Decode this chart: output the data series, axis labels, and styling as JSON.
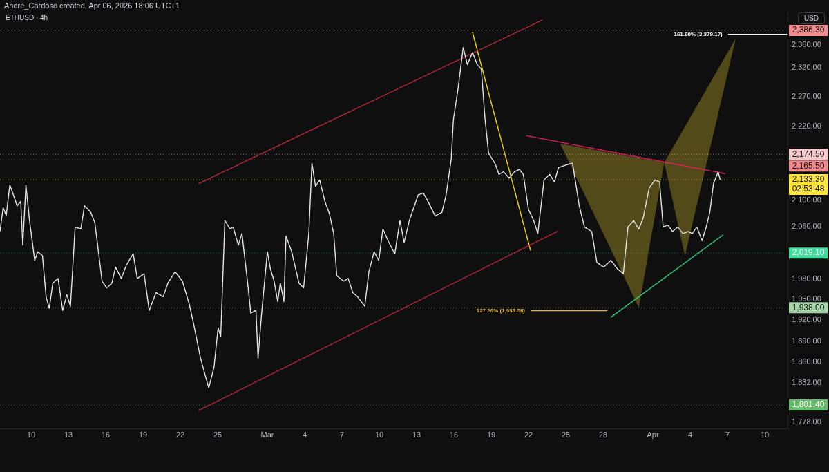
{
  "chart_data": {
    "type": "line",
    "title": "ETHUSD · 4h",
    "subtitle": "Andre_Cardoso created, Apr 06, 2026 18:06 UTC+1",
    "ylabel": "USD",
    "log": true,
    "grid": false,
    "legend": false,
    "marker": "none",
    "xlim": [
      "2026-02-07T12:00",
      "2026-04-11T20:00"
    ],
    "xticks": [
      {
        "value": "2026-02-10",
        "label": "10"
      },
      {
        "value": "2026-02-13",
        "label": "13"
      },
      {
        "value": "2026-02-16",
        "label": "16"
      },
      {
        "value": "2026-02-19",
        "label": "19"
      },
      {
        "value": "2026-02-22",
        "label": "22"
      },
      {
        "value": "2026-02-25",
        "label": "25"
      },
      {
        "value": "2026-03-01",
        "label": "Mar"
      },
      {
        "value": "2026-03-04",
        "label": "4"
      },
      {
        "value": "2026-03-07",
        "label": "7"
      },
      {
        "value": "2026-03-10",
        "label": "10"
      },
      {
        "value": "2026-03-13",
        "label": "13"
      },
      {
        "value": "2026-03-16",
        "label": "16"
      },
      {
        "value": "2026-03-19",
        "label": "19"
      },
      {
        "value": "2026-03-22",
        "label": "22"
      },
      {
        "value": "2026-03-25",
        "label": "25"
      },
      {
        "value": "2026-03-28",
        "label": "28"
      },
      {
        "value": "2026-04-01",
        "label": "Apr"
      },
      {
        "value": "2026-04-04",
        "label": "4"
      },
      {
        "value": "2026-04-07",
        "label": "7"
      },
      {
        "value": "2026-04-10",
        "label": "10"
      }
    ],
    "ylim": [
      1770,
      2420
    ],
    "yticks": [
      {
        "value": 1778,
        "label": "1,778.00"
      },
      {
        "value": 1832,
        "label": "1,832.00"
      },
      {
        "value": 1860,
        "label": "1,860.00"
      },
      {
        "value": 1890,
        "label": "1,890.00"
      },
      {
        "value": 1920,
        "label": "1,920.00"
      },
      {
        "value": 1950,
        "label": "1,950.00"
      },
      {
        "value": 1980,
        "label": "1,980.00"
      },
      {
        "value": 2060,
        "label": "2,060.00"
      },
      {
        "value": 2100,
        "label": "2,100.00"
      },
      {
        "value": 2220,
        "label": "2,220.00"
      },
      {
        "value": 2270,
        "label": "2,270.00"
      },
      {
        "value": 2320,
        "label": "2,320.00"
      },
      {
        "value": 2360,
        "label": "2,360.00"
      }
    ],
    "series": [
      {
        "type": "line",
        "color": "#e6e6e6",
        "x": [
          "2026-02-07T12:00",
          "2026-02-07T18:00",
          "2026-02-08T00:00",
          "2026-02-08T07:00",
          "2026-02-08T14:00",
          "2026-02-08T21:00",
          "2026-02-09T04:00",
          "2026-02-09T08:00",
          "2026-02-09T14:00",
          "2026-02-09T21:00",
          "2026-02-10T07:00",
          "2026-02-10T13:00",
          "2026-02-10T22:00",
          "2026-02-11T05:00",
          "2026-02-11T11:00",
          "2026-02-11T18:00",
          "2026-02-12T04:00",
          "2026-02-12T13:00",
          "2026-02-12T21:00",
          "2026-02-13T04:00",
          "2026-02-13T13:00",
          "2026-02-14T00:00",
          "2026-02-14T07:00",
          "2026-02-14T19:00",
          "2026-02-15T03:00",
          "2026-02-15T10:00",
          "2026-02-15T17:00",
          "2026-02-16T02:00",
          "2026-02-16T12:00",
          "2026-02-16T19:00",
          "2026-02-17T06:00",
          "2026-02-17T16:00",
          "2026-02-18T05:00",
          "2026-02-18T13:00",
          "2026-02-19T02:00",
          "2026-02-19T12:00",
          "2026-02-20T01:00",
          "2026-02-20T15:00",
          "2026-02-21T00:00",
          "2026-02-21T14:00",
          "2026-02-22T04:00",
          "2026-02-22T17:00",
          "2026-02-23T01:00",
          "2026-02-23T15:00",
          "2026-02-24T00:00",
          "2026-02-24T07:00",
          "2026-02-24T17:00",
          "2026-02-25T01:00",
          "2026-02-25T06:00",
          "2026-02-25T14:00",
          "2026-02-26T00:00",
          "2026-02-26T06:00",
          "2026-02-26T16:00",
          "2026-02-26T23:00",
          "2026-02-27T10:00",
          "2026-02-27T16:00",
          "2026-02-28T02:00",
          "2026-02-28T06:00",
          "2026-02-28T13:00",
          "2026-03-01T00:00",
          "2026-03-01T06:00",
          "2026-03-01T13:00",
          "2026-03-01T20:00",
          "2026-03-02T01:00",
          "2026-03-02T08:00",
          "2026-03-02T12:00",
          "2026-03-02T23:00",
          "2026-03-03T13:00",
          "2026-03-03T22:00",
          "2026-03-04T08:00",
          "2026-03-04T14:00",
          "2026-03-04T21:00",
          "2026-03-05T05:00",
          "2026-03-05T15:00",
          "2026-03-06T00:00",
          "2026-03-06T08:00",
          "2026-03-06T14:00",
          "2026-03-07T03:00",
          "2026-03-07T12:00",
          "2026-03-07T21:00",
          "2026-03-08T06:00",
          "2026-03-08T20:00",
          "2026-03-09T04:00",
          "2026-03-09T14:00",
          "2026-03-09T23:00",
          "2026-03-10T07:00",
          "2026-03-10T17:00",
          "2026-03-11T06:00",
          "2026-03-11T16:00",
          "2026-03-12T00:00",
          "2026-03-12T10:00",
          "2026-03-13T03:00",
          "2026-03-13T13:00",
          "2026-03-13T22:00",
          "2026-03-14T12:00",
          "2026-03-15T01:00",
          "2026-03-15T09:00",
          "2026-03-15T19:00",
          "2026-03-15T23:00",
          "2026-03-16T08:00",
          "2026-03-16T18:00",
          "2026-03-17T02:00",
          "2026-03-17T12:00",
          "2026-03-17T21:00",
          "2026-03-18T05:00",
          "2026-03-18T12:00",
          "2026-03-18T19:00",
          "2026-03-19T07:00",
          "2026-03-19T15:00",
          "2026-03-20T00:00",
          "2026-03-20T11:00",
          "2026-03-20T21:00",
          "2026-03-21T06:00",
          "2026-03-21T14:00",
          "2026-03-22T00:00",
          "2026-03-22T10:00",
          "2026-03-22T18:00",
          "2026-03-23T06:00",
          "2026-03-23T17:00",
          "2026-03-24T02:00",
          "2026-03-24T10:00",
          "2026-03-25T00:00",
          "2026-03-25T13:00",
          "2026-03-26T02:00",
          "2026-03-26T12:00",
          "2026-03-27T02:00",
          "2026-03-27T12:00",
          "2026-03-28T01:00",
          "2026-03-28T15:00",
          "2026-03-29T04:00",
          "2026-03-29T15:00",
          "2026-03-30T00:00",
          "2026-03-30T11:00",
          "2026-03-30T21:00",
          "2026-03-31T05:00",
          "2026-03-31T17:00",
          "2026-04-01T04:00",
          "2026-04-01T13:00",
          "2026-04-01T20:00",
          "2026-04-02T05:00",
          "2026-04-02T14:00",
          "2026-04-03T00:00",
          "2026-04-03T10:00",
          "2026-04-03T20:00",
          "2026-04-04T04:00",
          "2026-04-04T13:00",
          "2026-04-04T23:00",
          "2026-04-05T07:00",
          "2026-04-05T14:00",
          "2026-04-05T21:00",
          "2026-04-06T06:00",
          "2026-04-06T10:00"
        ],
        "values": [
          2052,
          2089,
          2077,
          2125,
          2109,
          2092,
          2099,
          2031,
          2125,
          2069,
          2008,
          2021,
          2015,
          1954,
          1937,
          1974,
          1981,
          1934,
          1957,
          1940,
          2059,
          2056,
          2092,
          2082,
          2066,
          2021,
          1977,
          1967,
          1974,
          1998,
          1981,
          2001,
          2018,
          1981,
          1988,
          1934,
          1960,
          1954,
          1974,
          1991,
          1977,
          1944,
          1917,
          1866,
          1842,
          1825,
          1853,
          1909,
          1896,
          2069,
          2056,
          2059,
          2031,
          2049,
          1974,
          1930,
          1934,
          1866,
          1930,
          2021,
          1995,
          1977,
          1947,
          1974,
          1947,
          2045,
          2021,
          1974,
          1967,
          2049,
          2160,
          2123,
          2133,
          2099,
          2079,
          2049,
          1985,
          1977,
          1981,
          1960,
          1954,
          1940,
          1991,
          2021,
          2008,
          2056,
          2038,
          2018,
          2069,
          2035,
          2069,
          2109,
          2112,
          2099,
          2076,
          2082,
          2109,
          2167,
          2231,
          2284,
          2356,
          2326,
          2347,
          2326,
          2318,
          2234,
          2176,
          2160,
          2142,
          2146,
          2136,
          2146,
          2150,
          2142,
          2086,
          2069,
          2049,
          2133,
          2142,
          2130,
          2153,
          2157,
          2160,
          2092,
          2059,
          2052,
          2005,
          1998,
          2008,
          1995,
          1988,
          2059,
          2069,
          2056,
          2072,
          2120,
          2133,
          2130,
          2059,
          2062,
          2052,
          2059,
          2049,
          2052,
          2049,
          2059,
          2038,
          2059,
          2082,
          2127,
          2146,
          2133.3
        ]
      },
      {
        "type": "line",
        "color": "#b2283a",
        "x": [
          "2026-02-23T11:00",
          "2026-03-23T03:00"
        ],
        "values": [
          2127,
          2405
        ]
      },
      {
        "type": "line",
        "color": "#b2283a",
        "x": [
          "2026-02-23T11:00",
          "2026-03-24T10:00"
        ],
        "values": [
          1794,
          2053
        ]
      },
      {
        "type": "line",
        "color": "#f5d800",
        "x": [
          "2026-03-17T12:00",
          "2026-03-22T04:00"
        ],
        "values": [
          2383,
          2023
        ]
      },
      {
        "type": "line",
        "color": "#e91e63",
        "x": [
          "2026-03-21T20:00",
          "2026-04-06T20:00"
        ],
        "values": [
          2205,
          2143
        ]
      },
      {
        "type": "line",
        "color": "#26d07c",
        "x": [
          "2026-03-28T15:00",
          "2026-04-06T16:00"
        ],
        "values": [
          1924,
          2047
        ]
      },
      {
        "type": "area",
        "color": "#5e561b",
        "x": [
          "2026-03-24T13:00",
          "2026-03-30T21:00",
          "2026-04-01T22:00",
          "2026-03-24T13:00"
        ],
        "values": [
          2192,
          1938,
          2161,
          2192
        ]
      },
      {
        "type": "area",
        "color": "#5e561b",
        "x": [
          "2026-04-01T22:00",
          "2026-04-03T14:00",
          "2026-04-07T16:00",
          "2026-04-01T22:00"
        ],
        "values": [
          2161,
          2015,
          2372,
          2161
        ]
      },
      {
        "type": "line",
        "color": "#f0b429",
        "x": [
          "2026-03-22T04:00",
          "2026-03-28T08:00"
        ],
        "values": [
          1933.58,
          1933.58
        ]
      },
      {
        "type": "line",
        "color": "#ffffff",
        "x": [
          "2026-04-07T01:00",
          "2026-04-11T19:00"
        ],
        "values": [
          2379.17,
          2379.17
        ]
      }
    ],
    "ref_lines": [
      {
        "axis": "y",
        "value": 2386.3,
        "label": "2,386.30",
        "color": "#f28b8f",
        "line_style": "dotted"
      },
      {
        "axis": "y",
        "value": 2174.5,
        "label": "2,174.50",
        "color": "#f8c9cc",
        "line_style": "dotted"
      },
      {
        "axis": "y",
        "value": 2165.5,
        "label": "2,165.50",
        "color": "#f28b8f",
        "line_style": "dotted"
      },
      {
        "axis": "y",
        "value": 2019.1,
        "label": "2,019.10",
        "color": "#3fdc9c",
        "line_style": "dotted"
      },
      {
        "axis": "y",
        "value": 1938,
        "label": "1,938.00",
        "color": "#a5d6a7",
        "line_style": "dotted"
      },
      {
        "axis": "y",
        "value": 1801.4,
        "label": "1,801.40",
        "color": "#66bb6a",
        "line_style": "dotted"
      },
      {
        "axis": "y",
        "value": 2133.3,
        "label": "2,133.30",
        "color": "#ffe53b",
        "line_style": "dotted"
      }
    ],
    "annotations": [
      {
        "text": "127.20% (1,933.58)",
        "x": "2026-03-22T04:00",
        "y": 1933.58
      },
      {
        "text": "161.80% (2,379.17)",
        "x": "2026-04-07T01:00",
        "y": 2379.17
      },
      "02:53:48"
    ]
  }
}
